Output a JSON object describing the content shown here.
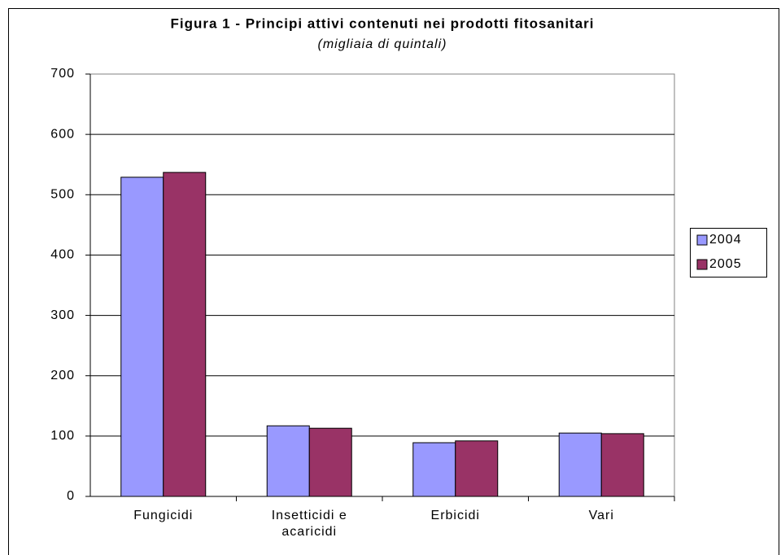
{
  "chart_data": {
    "type": "bar",
    "title": "Figura 1 - Principi attivi contenuti nei prodotti fitosanitari",
    "subtitle": "(migliaia di quintali)",
    "categories": [
      "Fungicidi",
      "Insetticidi e acaricidi",
      "Erbicidi",
      "Vari"
    ],
    "series": [
      {
        "name": "2004",
        "color": "#9999ff",
        "values": [
          529,
          117,
          89,
          105
        ]
      },
      {
        "name": "2005",
        "color": "#993366",
        "values": [
          537,
          113,
          92,
          104
        ]
      }
    ],
    "ylim": [
      0,
      700
    ],
    "yticks": [
      0,
      100,
      200,
      300,
      400,
      500,
      600,
      700
    ],
    "grid": true,
    "legend": "right"
  }
}
